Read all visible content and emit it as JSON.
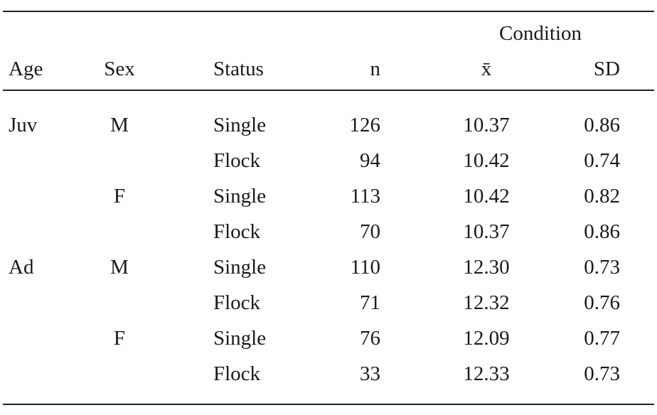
{
  "table": {
    "group_header": "Condition",
    "columns": [
      "Age",
      "Sex",
      "Status",
      "n",
      "x̄",
      "SD"
    ],
    "rows": [
      {
        "age": "Juv",
        "sex": "M",
        "status": "Single",
        "n": "126",
        "mean": "10.37",
        "sd": "0.86"
      },
      {
        "status": "Flock",
        "n": "94",
        "mean": "10.42",
        "sd": "0.74"
      },
      {
        "sex": "F",
        "status": "Single",
        "n": "113",
        "mean": "10.42",
        "sd": "0.82"
      },
      {
        "status": "Flock",
        "n": "70",
        "mean": "10.37",
        "sd": "0.86"
      },
      {
        "age": "Ad",
        "sex": "M",
        "status": "Single",
        "n": "110",
        "mean": "12.30",
        "sd": "0.73"
      },
      {
        "status": "Flock",
        "n": "71",
        "mean": "12.32",
        "sd": "0.76"
      },
      {
        "sex": "F",
        "status": "Single",
        "n": "76",
        "mean": "12.09",
        "sd": "0.77"
      },
      {
        "status": "Flock",
        "n": "33",
        "mean": "12.33",
        "sd": "0.73"
      }
    ]
  }
}
